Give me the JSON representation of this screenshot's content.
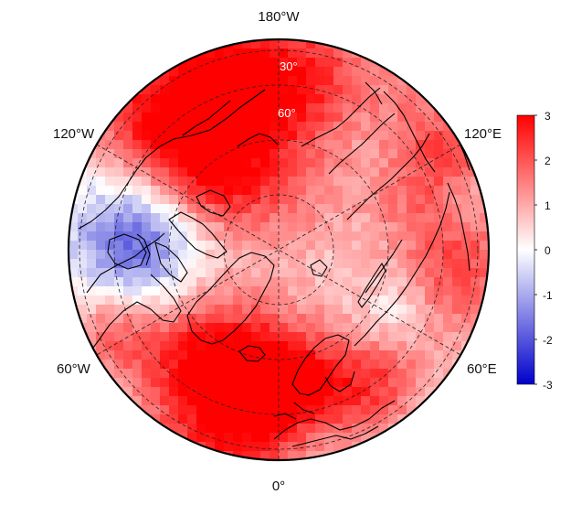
{
  "map": {
    "projection": "north-polar-stereographic",
    "longitude_labels": {
      "top": "180°W",
      "bottom": "0°",
      "upper_left": "120°W",
      "upper_right": "120°E",
      "lower_left": "60°W",
      "lower_right": "60°E"
    },
    "latitude_labels": [
      "30°",
      "60°"
    ],
    "colormap": {
      "low": "#0000cc",
      "mid": "#ffffff",
      "high": "#ff0000"
    },
    "coastline_color": "#000000",
    "graticule_style": "dashed",
    "grid": true
  },
  "colorbar": {
    "ticks": [
      "3",
      "2",
      "1",
      "0",
      "-1",
      "-2",
      "-3"
    ],
    "range": [
      -3,
      3
    ]
  }
}
